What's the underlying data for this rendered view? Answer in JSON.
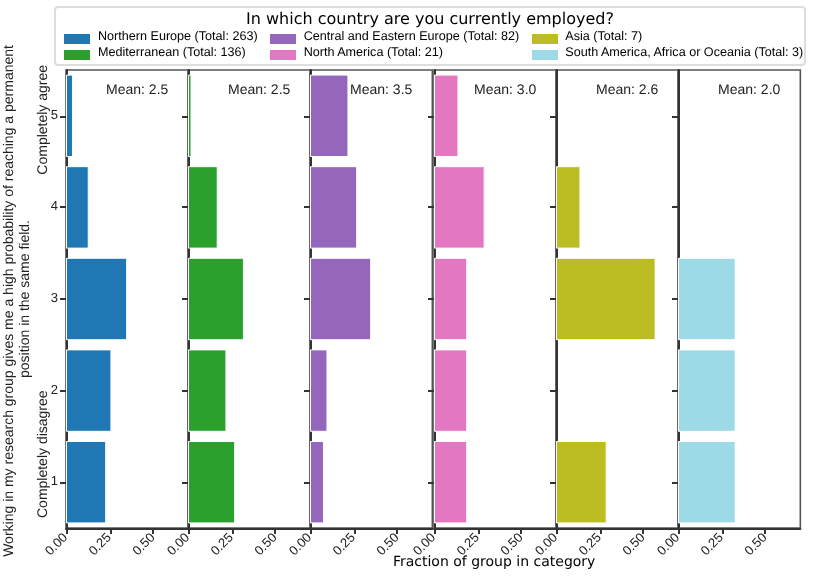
{
  "chart_data": [
    {
      "type": "bar",
      "orientation": "horizontal",
      "title": "Mean: 2.5",
      "legend": "top",
      "legend_title": "In which country are you currently employed?",
      "ylabel": "Working in my research group gives me a high probability of reaching a permanent position in the same field.",
      "annotations": [
        "Completely agree",
        "Completely disagree"
      ],
      "categories": [
        "5",
        "4",
        "3",
        "2",
        "1"
      ],
      "xlim": [
        0,
        0.7
      ],
      "xticks": [
        {
          "value": 0,
          "label": "0.00"
        },
        {
          "value": 0.25,
          "label": "0.25"
        },
        {
          "value": 0.5,
          "label": "0.50"
        }
      ],
      "series": [
        {
          "name": "Northern Europe (Total: 263)",
          "color": "#1f77b4",
          "values": [
            0.04,
            0.13,
            0.35,
            0.26,
            0.23
          ]
        }
      ]
    },
    {
      "type": "bar",
      "orientation": "horizontal",
      "title": "Mean: 2.5",
      "legend": "top",
      "tick_labels": "x",
      "categories": [
        null,
        null,
        null,
        null,
        null
      ],
      "xlim": [
        0,
        0.7
      ],
      "xticks": [
        {
          "value": 0,
          "label": "0.00"
        },
        {
          "value": 0.25,
          "label": "0.25"
        },
        {
          "value": 0.5,
          "label": "0.50"
        }
      ],
      "series": [
        {
          "name": "Mediterranean (Total: 136)",
          "color": "#2ca02c",
          "values": [
            0.02,
            0.17,
            0.32,
            0.22,
            0.27
          ]
        }
      ]
    },
    {
      "type": "bar",
      "orientation": "horizontal",
      "title": "Mean: 3.5",
      "legend": "top",
      "tick_labels": "x",
      "categories": [
        null,
        null,
        null,
        null,
        null
      ],
      "xlim": [
        0,
        0.7
      ],
      "xticks": [
        {
          "value": 0,
          "label": "0.00"
        },
        {
          "value": 0.25,
          "label": "0.25"
        },
        {
          "value": 0.5,
          "label": "0.50"
        }
      ],
      "series": [
        {
          "name": "Central and Eastern Europe (Total: 82)",
          "color": "#9467bd",
          "values": [
            0.22,
            0.27,
            0.35,
            0.1,
            0.08
          ]
        }
      ]
    },
    {
      "type": "bar",
      "orientation": "horizontal",
      "title": "Mean: 3.0",
      "xlabel": "Fraction of group in category",
      "legend": "top",
      "tick_labels": "x",
      "categories": [
        null,
        null,
        null,
        null,
        null
      ],
      "xlim": [
        0,
        0.7
      ],
      "xticks": [
        {
          "value": 0,
          "label": "0.00"
        },
        {
          "value": 0.25,
          "label": "0.25"
        },
        {
          "value": 0.5,
          "label": "0.50"
        }
      ],
      "series": [
        {
          "name": "North America (Total: 21)",
          "color": "#e377c2",
          "values": [
            0.14,
            0.29,
            0.19,
            0.19,
            0.19
          ]
        }
      ]
    },
    {
      "type": "bar",
      "orientation": "horizontal",
      "title": "Mean: 2.6",
      "legend": "top",
      "tick_labels": "x",
      "categories": [
        null,
        null,
        null,
        null,
        null
      ],
      "xlim": [
        0,
        0.7
      ],
      "xticks": [
        {
          "value": 0,
          "label": "0.00"
        },
        {
          "value": 0.25,
          "label": "0.25"
        },
        {
          "value": 0.5,
          "label": "0.50"
        }
      ],
      "series": [
        {
          "name": "Asia (Total: 7)",
          "color": "#bcbd22",
          "values": [
            null,
            0.14,
            0.57,
            null,
            0.29
          ]
        }
      ]
    },
    {
      "type": "bar",
      "orientation": "horizontal",
      "title": "Mean: 2.0",
      "legend": "top",
      "tick_labels": "x",
      "categories": [
        null,
        null,
        null,
        null,
        null
      ],
      "xlim": [
        0,
        0.7
      ],
      "xticks": [
        {
          "value": 0,
          "label": "0.00"
        },
        {
          "value": 0.25,
          "label": "0.25"
        },
        {
          "value": 0.5,
          "label": "0.50"
        }
      ],
      "series": [
        {
          "name": "South America, Africa or Oceania (Total: 3)",
          "color": "#9edae5",
          "values": [
            null,
            null,
            0.33,
            0.33,
            0.33
          ]
        }
      ]
    }
  ]
}
